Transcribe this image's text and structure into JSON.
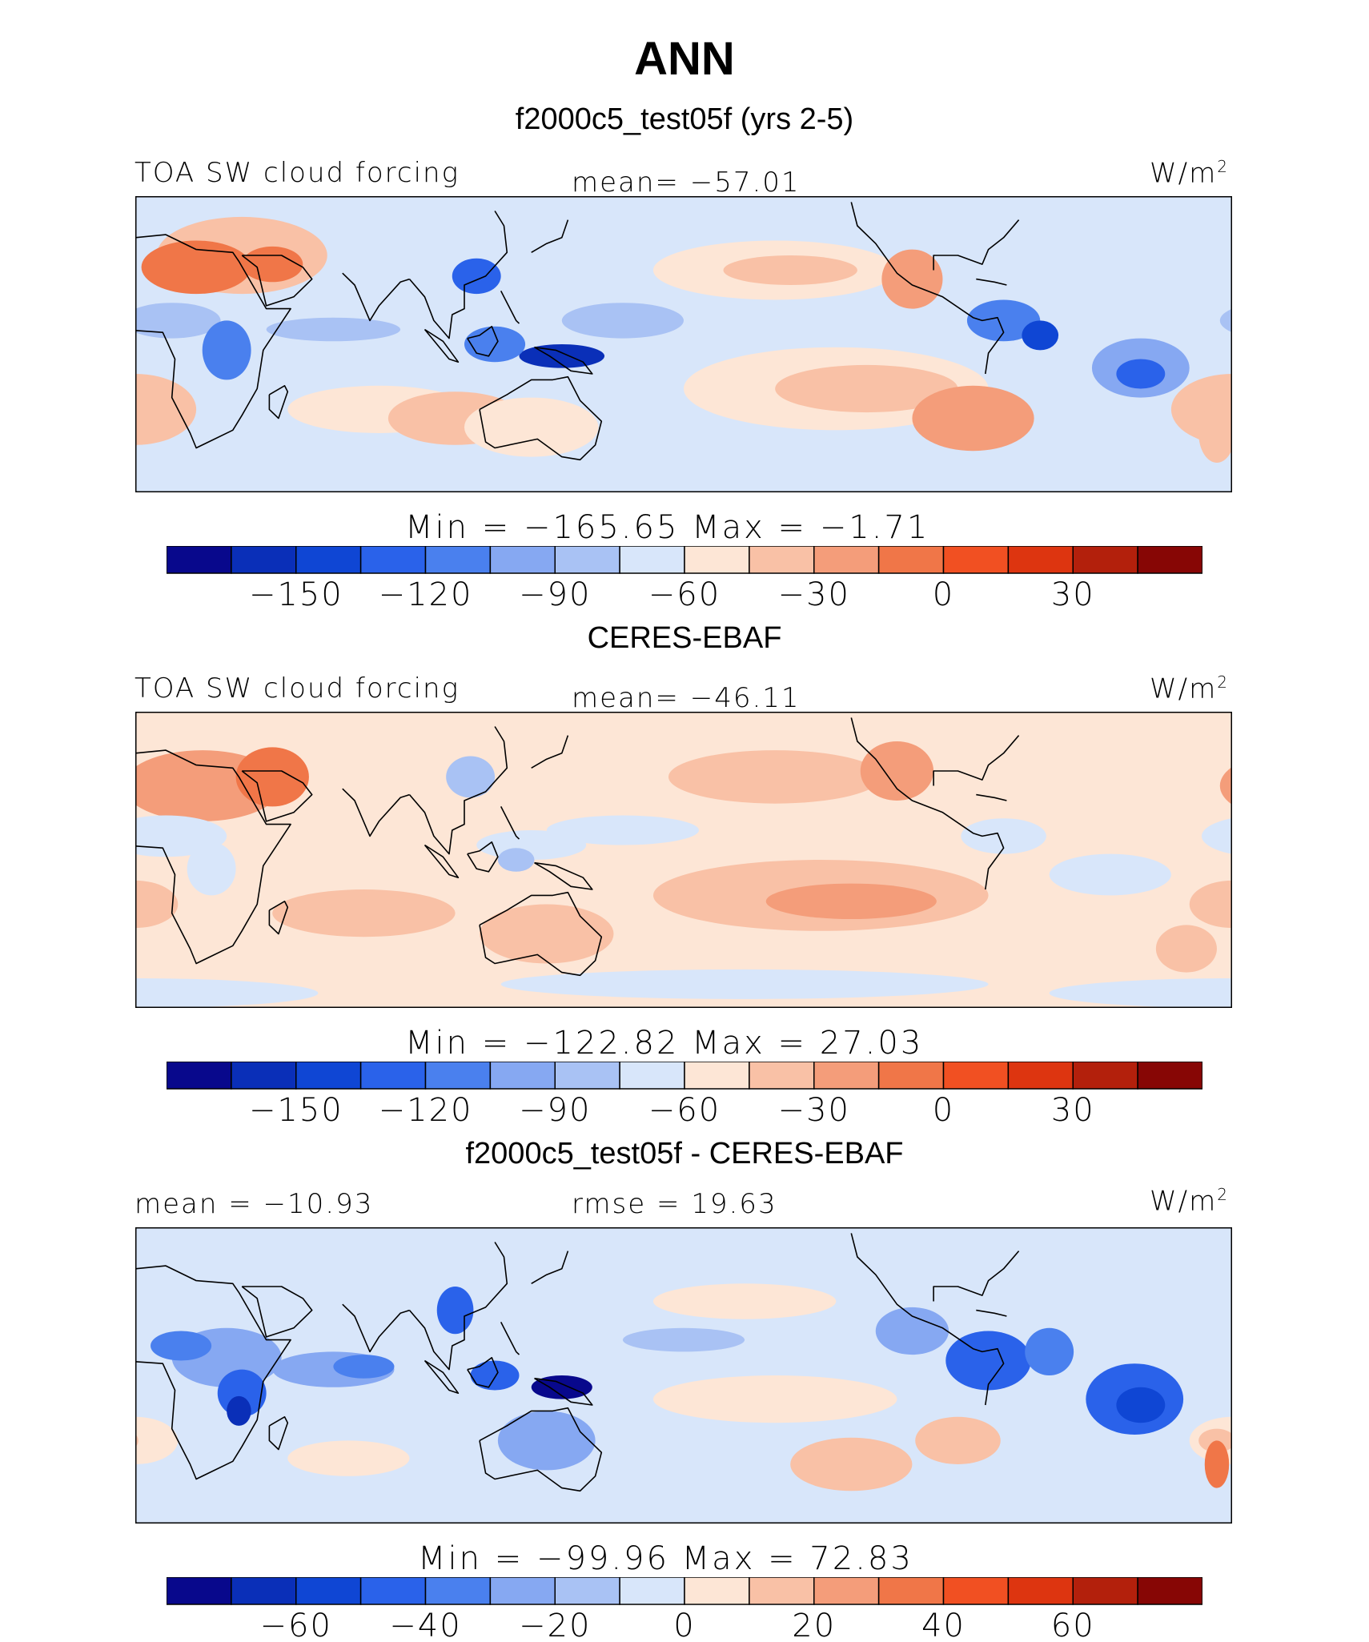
{
  "title": "ANN",
  "colors": {
    "ocean_base": "#dfeaf8",
    "coast": "#000000"
  },
  "panels": [
    {
      "subtitle": "f2000c5_test05f (yrs 2-5)",
      "left_label": "TOA SW cloud forcing",
      "center_label": "mean= −57.01",
      "unit": "W/m",
      "unit_sup": "2",
      "minmax": "Min = −165.65 Max =  −1.71",
      "colorbar": {
        "ticks": [
          "−150",
          "−120",
          "−90",
          "−60",
          "−30",
          "0",
          "30"
        ],
        "colors": [
          "#08088c",
          "#0a2fb8",
          "#0f46d4",
          "#2a62ea",
          "#4a80ee",
          "#86a8f2",
          "#a9c2f4",
          "#d8e6fa",
          "#fde6d6",
          "#f9c1a6",
          "#f49d7a",
          "#f07648",
          "#f15022",
          "#dd3510",
          "#b3200c",
          "#870605"
        ]
      }
    },
    {
      "subtitle": "CERES-EBAF",
      "left_label": "TOA SW cloud forcing",
      "center_label": "mean= −46.11",
      "unit": "W/m",
      "unit_sup": "2",
      "minmax": "Min = −122.82 Max =  27.03",
      "colorbar": {
        "ticks": [
          "−150",
          "−120",
          "−90",
          "−60",
          "−30",
          "0",
          "30"
        ],
        "colors": [
          "#08088c",
          "#0a2fb8",
          "#0f46d4",
          "#2a62ea",
          "#4a80ee",
          "#86a8f2",
          "#a9c2f4",
          "#d8e6fa",
          "#fde6d6",
          "#f9c1a6",
          "#f49d7a",
          "#f07648",
          "#f15022",
          "#dd3510",
          "#b3200c",
          "#870605"
        ]
      }
    },
    {
      "subtitle": "f2000c5_test05f - CERES-EBAF",
      "left_label": "mean = −10.93",
      "center_label": "rmse =  19.63",
      "unit": "W/m",
      "unit_sup": "2",
      "minmax": "Min = −99.96 Max =  72.83",
      "colorbar": {
        "ticks": [
          "−60",
          "−40",
          "−20",
          "0",
          "20",
          "40",
          "60"
        ],
        "colors": [
          "#08088c",
          "#0a2fb8",
          "#0f46d4",
          "#2a62ea",
          "#4a80ee",
          "#86a8f2",
          "#a9c2f4",
          "#d8e6fa",
          "#fde6d6",
          "#f9c1a6",
          "#f49d7a",
          "#f07648",
          "#f15022",
          "#dd3510",
          "#b3200c",
          "#870605"
        ]
      }
    }
  ],
  "chart_data": [
    {
      "type": "heatmap",
      "title": "f2000c5_test05f (yrs 2-5)",
      "variable": "TOA SW cloud forcing",
      "units": "W/m2",
      "mean": -57.01,
      "min": -165.65,
      "max": -1.71,
      "levels": [
        -165,
        -150,
        -135,
        -120,
        -105,
        -90,
        -75,
        -60,
        -45,
        -30,
        -15,
        0,
        15,
        30,
        45
      ],
      "contour_fill": true,
      "map": "world, 180 centered"
    },
    {
      "type": "heatmap",
      "title": "CERES-EBAF",
      "variable": "TOA SW cloud forcing",
      "units": "W/m2",
      "mean": -46.11,
      "min": -122.82,
      "max": 27.03,
      "levels": [
        -165,
        -150,
        -135,
        -120,
        -105,
        -90,
        -75,
        -60,
        -45,
        -30,
        -15,
        0,
        15,
        30,
        45
      ],
      "contour_fill": true,
      "map": "world, 180 centered"
    },
    {
      "type": "heatmap",
      "title": "f2000c5_test05f - CERES-EBAF",
      "units": "W/m2",
      "mean": -10.93,
      "rmse": 19.63,
      "min": -99.96,
      "max": 72.83,
      "levels": [
        -70,
        -60,
        -50,
        -40,
        -30,
        -20,
        -10,
        0,
        10,
        20,
        30,
        40,
        50,
        60,
        70
      ],
      "contour_fill": true,
      "map": "world, 180 centered"
    }
  ]
}
